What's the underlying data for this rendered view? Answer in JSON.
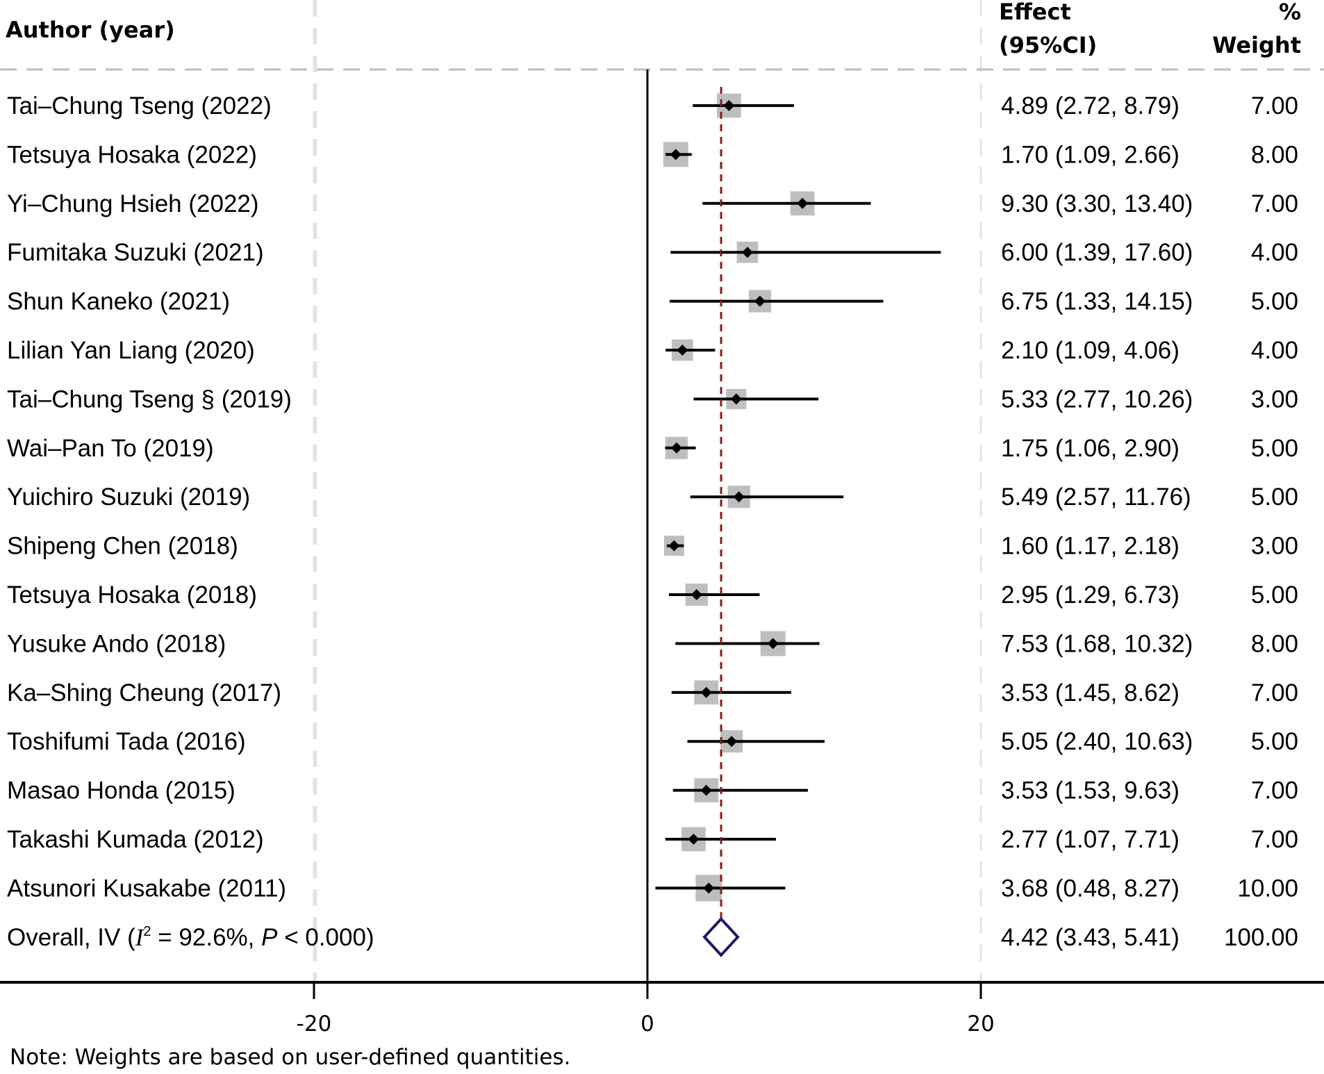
{
  "chart_data": {
    "type": "forest",
    "title": "",
    "headers": {
      "author": "Author (year)",
      "effect_line1": "Effect",
      "effect_line2": "(95%CI)",
      "weight_line1": "%",
      "weight_line2": "Weight"
    },
    "studies": [
      {
        "label": "Tai–Chung Tseng (2022)",
        "effect": 4.89,
        "lower": 2.72,
        "upper": 8.79,
        "ci_text": "4.89 (2.72, 8.79)",
        "weight": 7.0,
        "weight_text": "7.00"
      },
      {
        "label": "Tetsuya Hosaka (2022)",
        "effect": 1.7,
        "lower": 1.09,
        "upper": 2.66,
        "ci_text": "1.70 (1.09, 2.66)",
        "weight": 8.0,
        "weight_text": "8.00"
      },
      {
        "label": "Yi–Chung Hsieh (2022)",
        "effect": 9.3,
        "lower": 3.3,
        "upper": 13.4,
        "ci_text": "9.30 (3.30, 13.40)",
        "weight": 7.0,
        "weight_text": "7.00"
      },
      {
        "label": "Fumitaka Suzuki (2021)",
        "effect": 6.0,
        "lower": 1.39,
        "upper": 17.6,
        "ci_text": "6.00 (1.39, 17.60)",
        "weight": 4.0,
        "weight_text": "4.00"
      },
      {
        "label": "Shun Kaneko (2021)",
        "effect": 6.75,
        "lower": 1.33,
        "upper": 14.15,
        "ci_text": "6.75 (1.33, 14.15)",
        "weight": 5.0,
        "weight_text": "5.00"
      },
      {
        "label": "Lilian Yan Liang (2020)",
        "effect": 2.1,
        "lower": 1.09,
        "upper": 4.06,
        "ci_text": "2.10 (1.09, 4.06)",
        "weight": 4.0,
        "weight_text": "4.00"
      },
      {
        "label": "Tai–Chung Tseng § (2019)",
        "effect": 5.33,
        "lower": 2.77,
        "upper": 10.26,
        "ci_text": "5.33 (2.77, 10.26)",
        "weight": 3.0,
        "weight_text": "3.00"
      },
      {
        "label": "Wai–Pan To (2019)",
        "effect": 1.75,
        "lower": 1.06,
        "upper": 2.9,
        "ci_text": "1.75 (1.06, 2.90)",
        "weight": 5.0,
        "weight_text": "5.00"
      },
      {
        "label": "Yuichiro Suzuki (2019)",
        "effect": 5.49,
        "lower": 2.57,
        "upper": 11.76,
        "ci_text": "5.49 (2.57, 11.76)",
        "weight": 5.0,
        "weight_text": "5.00"
      },
      {
        "label": "Shipeng Chen (2018)",
        "effect": 1.6,
        "lower": 1.17,
        "upper": 2.18,
        "ci_text": "1.60 (1.17, 2.18)",
        "weight": 3.0,
        "weight_text": "3.00"
      },
      {
        "label": "Tetsuya Hosaka (2018)",
        "effect": 2.95,
        "lower": 1.29,
        "upper": 6.73,
        "ci_text": "2.95 (1.29, 6.73)",
        "weight": 5.0,
        "weight_text": "5.00"
      },
      {
        "label": "Yusuke Ando (2018)",
        "effect": 7.53,
        "lower": 1.68,
        "upper": 10.32,
        "ci_text": "7.53 (1.68, 10.32)",
        "weight": 8.0,
        "weight_text": "8.00"
      },
      {
        "label": "Ka–Shing Cheung (2017)",
        "effect": 3.53,
        "lower": 1.45,
        "upper": 8.62,
        "ci_text": "3.53 (1.45, 8.62)",
        "weight": 7.0,
        "weight_text": "7.00"
      },
      {
        "label": "Toshifumi Tada (2016)",
        "effect": 5.05,
        "lower": 2.4,
        "upper": 10.63,
        "ci_text": "5.05 (2.40, 10.63)",
        "weight": 5.0,
        "weight_text": "5.00"
      },
      {
        "label": "Masao Honda (2015)",
        "effect": 3.53,
        "lower": 1.53,
        "upper": 9.63,
        "ci_text": "3.53 (1.53, 9.63)",
        "weight": 7.0,
        "weight_text": "7.00"
      },
      {
        "label": "Takashi Kumada (2012)",
        "effect": 2.77,
        "lower": 1.07,
        "upper": 7.71,
        "ci_text": "2.77 (1.07, 7.71)",
        "weight": 7.0,
        "weight_text": "7.00"
      },
      {
        "label": "Atsunori Kusakabe (2011)",
        "effect": 3.68,
        "lower": 0.48,
        "upper": 8.27,
        "ci_text": "3.68 (0.48, 8.27)",
        "weight": 10.0,
        "weight_text": "10.00"
      }
    ],
    "overall": {
      "label_prefix": "Overall, IV (",
      "label_i": "I",
      "label_sup": "2",
      "label_mid": " = 92.6%, ",
      "label_p": "P",
      "label_suffix": " < 0.000)",
      "effect": 4.42,
      "lower": 3.43,
      "upper": 5.41,
      "ci_text": "4.42 (3.43, 5.41)",
      "weight_text": "100.00"
    },
    "x_ticks": [
      -20,
      0,
      20
    ],
    "x_tick_labels": [
      "-20",
      "0",
      "20"
    ],
    "xlim": [
      -38.9,
      40.6
    ],
    "null_line": 0,
    "overall_line": 4.42,
    "note": "Note: Weights are based on user-defined quantities.",
    "colors": {
      "box": "#bebebe",
      "point": "#000000",
      "ci_line": "#000000",
      "overall_line": "#8b1a1a",
      "diamond": "#1a1a66",
      "grid": "#e3e3e3",
      "header_rule": "#bdbdbd"
    }
  }
}
